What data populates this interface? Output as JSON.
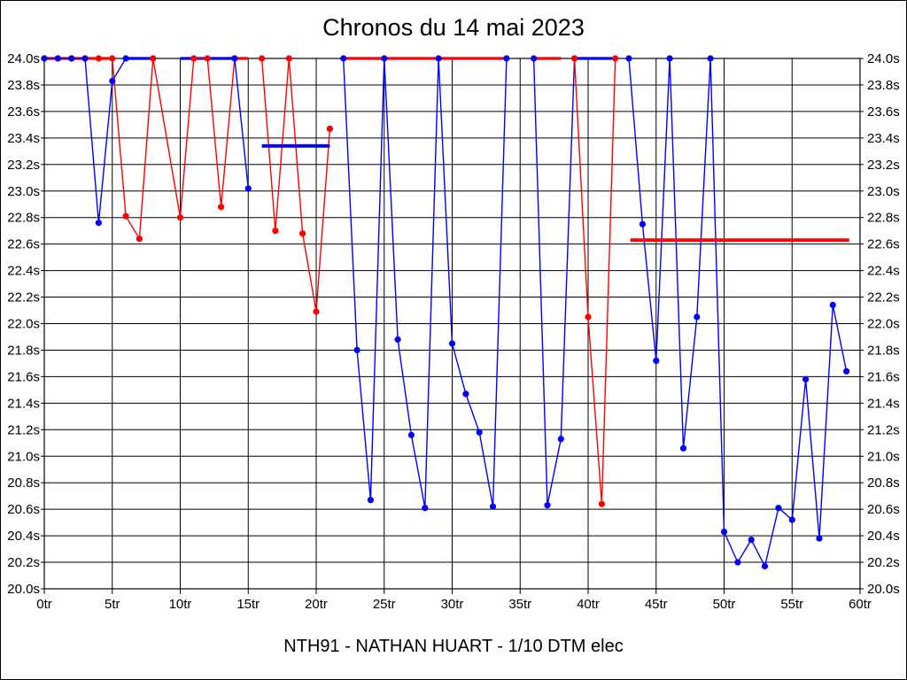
{
  "page": {
    "title": "Chronos du 14 mai 2023",
    "footer": "NTH91 - NATHAN HUART - 1/10 DTM elec"
  },
  "chart_data": {
    "type": "line",
    "title": "Chronos du 14 mai 2023",
    "footer_label": "NTH91 - NATHAN HUART - 1/10 DTM elec",
    "x_unit": "tr",
    "y_unit": "s",
    "xlim": [
      0,
      60
    ],
    "ylim": [
      20.0,
      24.0
    ],
    "x_ticks": [
      0,
      5,
      10,
      15,
      20,
      25,
      30,
      35,
      40,
      45,
      50,
      55,
      60
    ],
    "x_tick_labels": [
      "0tr",
      "5tr",
      "10tr",
      "15tr",
      "20tr",
      "25tr",
      "30tr",
      "35tr",
      "40tr",
      "45tr",
      "50tr",
      "55tr",
      "60tr"
    ],
    "y_tick_step": 0.2,
    "y_tick_labels": [
      "24.0s",
      "23.8s",
      "23.6s",
      "23.4s",
      "23.2s",
      "23.0s",
      "22.8s",
      "22.6s",
      "22.4s",
      "22.2s",
      "22.0s",
      "21.8s",
      "21.6s",
      "21.4s",
      "21.2s",
      "21.0s",
      "20.8s",
      "20.6s",
      "20.4s",
      "20.2s",
      "20.0s"
    ],
    "grid": true,
    "legend": false,
    "values_clipped_at_top": 24.0,
    "colors": {
      "blue": "#0000ff",
      "red": "#ff0000"
    },
    "segments": [
      {
        "name": "red-laps-0-8",
        "series": "red",
        "style": "line+markers",
        "points": [
          [
            0,
            24
          ],
          [
            1,
            24
          ],
          [
            2,
            24
          ],
          [
            3,
            24
          ],
          [
            4,
            24
          ],
          [
            5,
            24
          ],
          [
            6,
            22.81
          ],
          [
            7,
            22.64
          ],
          [
            8,
            24
          ]
        ]
      },
      {
        "name": "red-flat-0-5",
        "series": "red",
        "style": "flat-bar",
        "points": [
          [
            0,
            24
          ],
          [
            5,
            24
          ]
        ]
      },
      {
        "name": "blue-laps-0-6",
        "series": "blue",
        "style": "line+markers",
        "points": [
          [
            0,
            24
          ],
          [
            1,
            24
          ],
          [
            2,
            24
          ],
          [
            3,
            24
          ],
          [
            4,
            22.76
          ],
          [
            5,
            23.83
          ],
          [
            6,
            24
          ]
        ]
      },
      {
        "name": "blue-flat-6-8",
        "series": "blue",
        "style": "flat-bar",
        "points": [
          [
            6,
            24
          ],
          [
            8,
            24
          ]
        ]
      },
      {
        "name": "blue-flat-10-14",
        "series": "blue",
        "style": "flat-bar",
        "points": [
          [
            10,
            24
          ],
          [
            14,
            24
          ]
        ]
      },
      {
        "name": "red-laps-8-14",
        "series": "red",
        "style": "line+markers",
        "points": [
          [
            8,
            24
          ],
          [
            10,
            22.8
          ],
          [
            11,
            24
          ],
          [
            12,
            24
          ],
          [
            13,
            22.88
          ],
          [
            14,
            24
          ]
        ]
      },
      {
        "name": "red-flat-14-15",
        "series": "red",
        "style": "flat-bar",
        "points": [
          [
            14,
            24
          ],
          [
            15,
            24
          ]
        ]
      },
      {
        "name": "blue-laps-14-15",
        "series": "blue",
        "style": "line+markers",
        "points": [
          [
            14,
            24
          ],
          [
            15,
            23.02
          ]
        ]
      },
      {
        "name": "red-laps-16-21",
        "series": "red",
        "style": "line+markers",
        "points": [
          [
            16,
            24
          ],
          [
            17,
            22.7
          ],
          [
            18,
            24
          ],
          [
            19,
            22.68
          ],
          [
            20,
            22.09
          ],
          [
            21,
            23.47
          ]
        ]
      },
      {
        "name": "blue-average-16-21",
        "series": "blue",
        "style": "average-line",
        "points": [
          [
            16,
            23.34
          ],
          [
            21,
            23.34
          ]
        ]
      },
      {
        "name": "red-flat-22-34",
        "series": "red",
        "style": "flat-bar",
        "points": [
          [
            22,
            24
          ],
          [
            34,
            24
          ]
        ]
      },
      {
        "name": "blue-laps-22-34",
        "series": "blue",
        "style": "line+markers",
        "points": [
          [
            22,
            24
          ],
          [
            23,
            21.8
          ],
          [
            24,
            20.67
          ],
          [
            25,
            24
          ],
          [
            26,
            21.88
          ],
          [
            27,
            21.16
          ],
          [
            28,
            20.61
          ],
          [
            29,
            24
          ],
          [
            30,
            21.85
          ],
          [
            31,
            21.47
          ],
          [
            32,
            21.18
          ],
          [
            33,
            20.62
          ],
          [
            34,
            24
          ]
        ]
      },
      {
        "name": "red-flat-36-38",
        "series": "red",
        "style": "flat-bar",
        "points": [
          [
            36,
            24
          ],
          [
            38,
            24
          ]
        ]
      },
      {
        "name": "blue-laps-36-39",
        "series": "blue",
        "style": "line+markers",
        "points": [
          [
            36,
            24
          ],
          [
            37,
            20.63
          ],
          [
            38,
            21.13
          ],
          [
            39,
            24
          ]
        ]
      },
      {
        "name": "blue-flat-39-42",
        "series": "blue",
        "style": "flat-bar",
        "points": [
          [
            39,
            24
          ],
          [
            42,
            24
          ]
        ]
      },
      {
        "name": "red-laps-39-42",
        "series": "red",
        "style": "line+markers",
        "points": [
          [
            39,
            24
          ],
          [
            40,
            22.05
          ],
          [
            41,
            20.64
          ],
          [
            42,
            24
          ]
        ]
      },
      {
        "name": "blue-laps-43-59",
        "series": "blue",
        "style": "line+markers",
        "points": [
          [
            43,
            24
          ],
          [
            44,
            22.75
          ],
          [
            45,
            21.72
          ],
          [
            46,
            24
          ],
          [
            47,
            21.06
          ],
          [
            48,
            22.05
          ],
          [
            49,
            24
          ],
          [
            50,
            20.43
          ],
          [
            51,
            20.2
          ],
          [
            52,
            20.37
          ],
          [
            53,
            20.17
          ],
          [
            54,
            20.61
          ],
          [
            55,
            20.52
          ],
          [
            56,
            21.58
          ],
          [
            57,
            20.38
          ],
          [
            58,
            22.14
          ],
          [
            59,
            21.64
          ]
        ]
      },
      {
        "name": "red-average-43-59",
        "series": "red",
        "style": "average-line",
        "points": [
          [
            43.1,
            22.63
          ],
          [
            59.2,
            22.63
          ]
        ]
      }
    ]
  }
}
